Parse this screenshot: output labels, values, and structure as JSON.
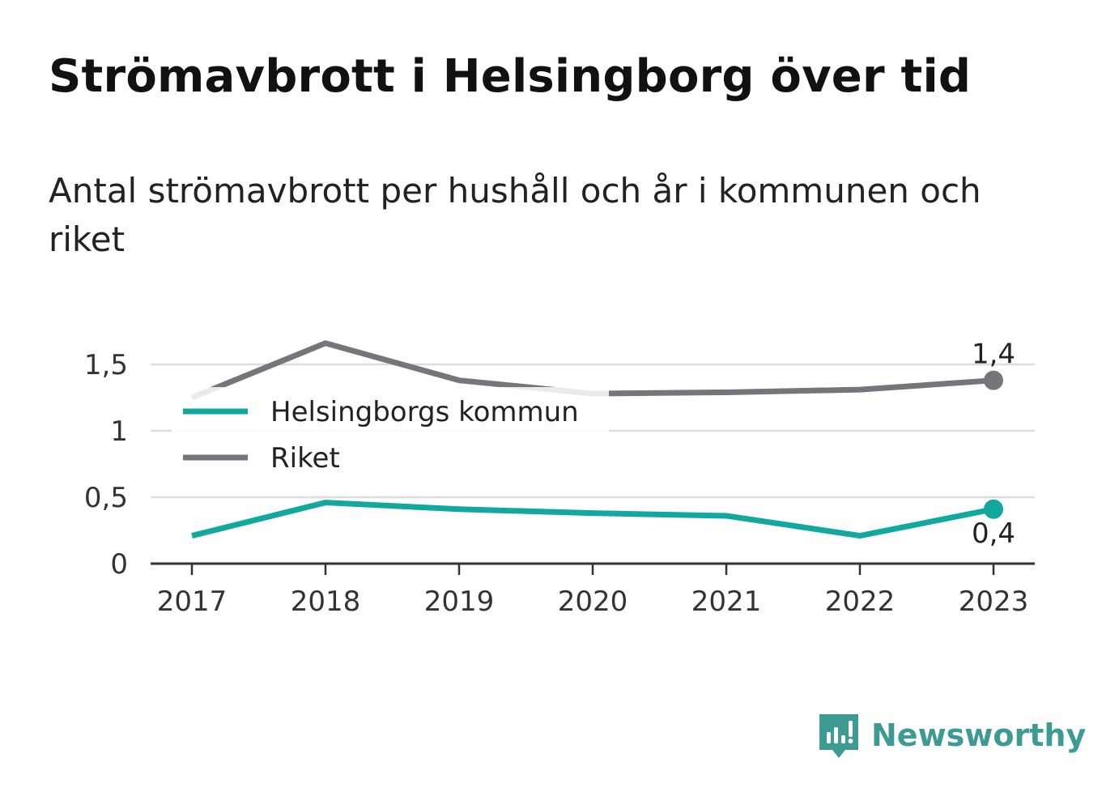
{
  "title": "Strömavbrott i Helsingborg över tid",
  "subtitle": "Antal strömavbrott per hushåll och år i kommunen och riket",
  "brand": {
    "name": "Newsworthy",
    "icon": "newsworthy-logo-icon",
    "color": "#3d9b93"
  },
  "chart_data": {
    "type": "line",
    "categories": [
      "2017",
      "2018",
      "2019",
      "2020",
      "2021",
      "2022",
      "2023"
    ],
    "series": [
      {
        "name": "Helsingborgs kommun",
        "color": "#13a89e",
        "values": [
          0.21,
          0.46,
          0.41,
          0.38,
          0.36,
          0.21,
          0.41
        ],
        "end_label": "0,4"
      },
      {
        "name": "Riket",
        "color": "#75757c",
        "values": [
          1.25,
          1.66,
          1.38,
          1.28,
          1.29,
          1.31,
          1.38
        ],
        "end_label": "1,4"
      }
    ],
    "yticks": [
      {
        "value": 0,
        "label": "0"
      },
      {
        "value": 0.5,
        "label": "0,5"
      },
      {
        "value": 1,
        "label": "1"
      },
      {
        "value": 1.5,
        "label": "1,5"
      }
    ],
    "ylim": [
      0,
      1.5
    ],
    "grid": true,
    "legend_position": "top-left"
  }
}
